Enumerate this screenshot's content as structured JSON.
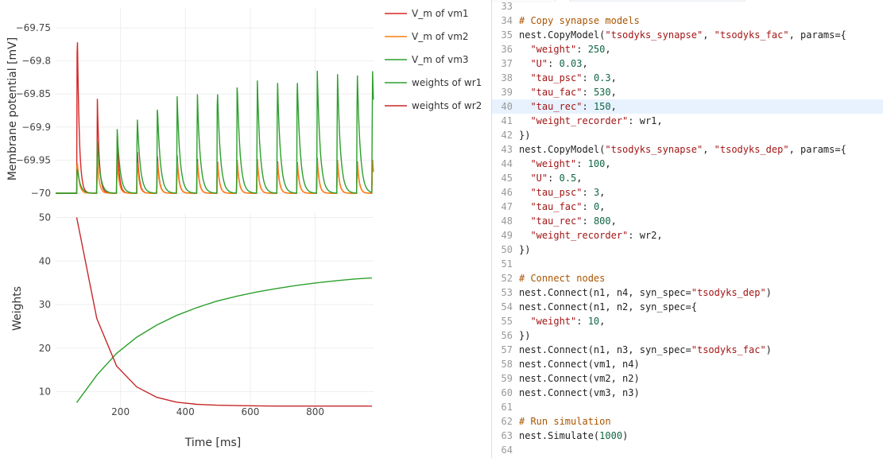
{
  "plot": {
    "legend": [
      {
        "label": "V_m of vm1",
        "color": "#d62728"
      },
      {
        "label": "V_m of vm2",
        "color": "#ff7f0e"
      },
      {
        "label": "V_m of vm3",
        "color": "#2ca02c"
      },
      {
        "label": "weights of wr1",
        "color": "#2ca02c"
      },
      {
        "label": "weights of wr2",
        "color": "#c62828"
      }
    ],
    "top_ylabel": "Membrane potential [mV]",
    "bottom_ylabel": "Weights",
    "xlabel": "Time [ms]"
  },
  "chart_data": [
    {
      "type": "line",
      "title": "",
      "ylabel": "Membrane potential [mV]",
      "xlabel": "",
      "xlim": [
        0,
        980
      ],
      "ylim": [
        -70.0,
        -69.72
      ],
      "yticks": [
        "−69.75",
        "−69.8",
        "−69.85",
        "−69.9",
        "−69.95",
        "−70"
      ],
      "spike_times": [
        65,
        127,
        188,
        250,
        312,
        373,
        435,
        497,
        558,
        620,
        682,
        743,
        805,
        867,
        928,
        975
      ],
      "series": [
        {
          "name": "V_m of vm1",
          "color": "#d62728",
          "peaks": [
            -69.735,
            -69.855,
            -69.91,
            -69.93,
            -69.94,
            -69.942,
            -69.944,
            -69.945,
            -69.946,
            -69.946,
            -69.946,
            -69.946,
            -69.946,
            -69.946,
            -69.946,
            -69.946
          ]
        },
        {
          "name": "V_m of vm2",
          "color": "#ff7f0e",
          "peaks": [
            -69.948,
            -69.948,
            -69.948,
            -69.948,
            -69.948,
            -69.948,
            -69.948,
            -69.948,
            -69.948,
            -69.948,
            -69.948,
            -69.948,
            -69.948,
            -69.948,
            -69.948,
            -69.948
          ]
        },
        {
          "name": "V_m of vm3",
          "color": "#2ca02c",
          "peaks": [
            -69.96,
            -69.92,
            -69.9,
            -69.88,
            -69.865,
            -69.852,
            -69.842,
            -69.835,
            -69.829,
            -69.824,
            -69.82,
            -69.816,
            -69.813,
            -69.81,
            -69.808,
            -69.806
          ]
        }
      ]
    },
    {
      "type": "line",
      "title": "",
      "ylabel": "Weights",
      "xlabel": "Time [ms]",
      "xlim": [
        0,
        980
      ],
      "ylim": [
        5,
        51
      ],
      "yticks": [
        10,
        20,
        30,
        40,
        50
      ],
      "xticks": [
        200,
        400,
        600,
        800
      ],
      "series": [
        {
          "name": "weights of wr1",
          "color": "#2ca02c",
          "x": [
            65,
            127,
            188,
            250,
            312,
            373,
            435,
            497,
            558,
            620,
            682,
            743,
            805,
            867,
            928,
            975
          ],
          "y": [
            7.5,
            13.8,
            18.8,
            22.5,
            25.3,
            27.5,
            29.3,
            30.8,
            31.9,
            32.9,
            33.7,
            34.4,
            35.0,
            35.5,
            35.9,
            36.1
          ]
        },
        {
          "name": "weights of wr2",
          "color": "#c62828",
          "x": [
            65,
            127,
            188,
            250,
            312,
            373,
            435,
            497,
            558,
            620,
            682,
            743,
            805,
            867,
            928,
            975
          ],
          "y": [
            50,
            26.8,
            15.9,
            11.1,
            8.7,
            7.6,
            7.1,
            6.9,
            6.8,
            6.75,
            6.7,
            6.7,
            6.7,
            6.7,
            6.7,
            6.7
          ]
        }
      ]
    }
  ],
  "editor": {
    "highlight_line": 40,
    "lines": [
      {
        "n": "33",
        "t": []
      },
      {
        "n": "34",
        "t": [
          [
            "com",
            "# Copy synapse models"
          ]
        ]
      },
      {
        "n": "35",
        "t": [
          [
            "plain",
            "nest.CopyModel("
          ],
          [
            "str",
            "\"tsodyks_synapse\""
          ],
          [
            "plain",
            ", "
          ],
          [
            "str",
            "\"tsodyks_fac\""
          ],
          [
            "plain",
            ", params={"
          ]
        ]
      },
      {
        "n": "36",
        "t": [
          [
            "plain",
            "  "
          ],
          [
            "str",
            "\"weight\""
          ],
          [
            "plain",
            ": "
          ],
          [
            "num",
            "250"
          ],
          [
            "plain",
            ","
          ]
        ]
      },
      {
        "n": "37",
        "t": [
          [
            "plain",
            "  "
          ],
          [
            "str",
            "\"U\""
          ],
          [
            "plain",
            ": "
          ],
          [
            "num",
            "0.03"
          ],
          [
            "plain",
            ","
          ]
        ]
      },
      {
        "n": "38",
        "t": [
          [
            "plain",
            "  "
          ],
          [
            "str",
            "\"tau_psc\""
          ],
          [
            "plain",
            ": "
          ],
          [
            "num",
            "0.3"
          ],
          [
            "plain",
            ","
          ]
        ]
      },
      {
        "n": "39",
        "t": [
          [
            "plain",
            "  "
          ],
          [
            "str",
            "\"tau_fac\""
          ],
          [
            "plain",
            ": "
          ],
          [
            "num",
            "530"
          ],
          [
            "plain",
            ","
          ]
        ]
      },
      {
        "n": "40",
        "t": [
          [
            "plain",
            "  "
          ],
          [
            "str",
            "\"tau_rec\""
          ],
          [
            "plain",
            ": "
          ],
          [
            "num",
            "150"
          ],
          [
            "plain",
            ","
          ]
        ]
      },
      {
        "n": "41",
        "t": [
          [
            "plain",
            "  "
          ],
          [
            "str",
            "\"weight_recorder\""
          ],
          [
            "plain",
            ": wr1,"
          ]
        ]
      },
      {
        "n": "42",
        "t": [
          [
            "plain",
            "})"
          ]
        ]
      },
      {
        "n": "43",
        "t": [
          [
            "plain",
            "nest.CopyModel("
          ],
          [
            "str",
            "\"tsodyks_synapse\""
          ],
          [
            "plain",
            ", "
          ],
          [
            "str",
            "\"tsodyks_dep\""
          ],
          [
            "plain",
            ", params={"
          ]
        ]
      },
      {
        "n": "44",
        "t": [
          [
            "plain",
            "  "
          ],
          [
            "str",
            "\"weight\""
          ],
          [
            "plain",
            ": "
          ],
          [
            "num",
            "100"
          ],
          [
            "plain",
            ","
          ]
        ]
      },
      {
        "n": "45",
        "t": [
          [
            "plain",
            "  "
          ],
          [
            "str",
            "\"U\""
          ],
          [
            "plain",
            ": "
          ],
          [
            "num",
            "0.5"
          ],
          [
            "plain",
            ","
          ]
        ]
      },
      {
        "n": "46",
        "t": [
          [
            "plain",
            "  "
          ],
          [
            "str",
            "\"tau_psc\""
          ],
          [
            "plain",
            ": "
          ],
          [
            "num",
            "3"
          ],
          [
            "plain",
            ","
          ]
        ]
      },
      {
        "n": "47",
        "t": [
          [
            "plain",
            "  "
          ],
          [
            "str",
            "\"tau_fac\""
          ],
          [
            "plain",
            ": "
          ],
          [
            "num",
            "0"
          ],
          [
            "plain",
            ","
          ]
        ]
      },
      {
        "n": "48",
        "t": [
          [
            "plain",
            "  "
          ],
          [
            "str",
            "\"tau_rec\""
          ],
          [
            "plain",
            ": "
          ],
          [
            "num",
            "800"
          ],
          [
            "plain",
            ","
          ]
        ]
      },
      {
        "n": "49",
        "t": [
          [
            "plain",
            "  "
          ],
          [
            "str",
            "\"weight_recorder\""
          ],
          [
            "plain",
            ": wr2,"
          ]
        ]
      },
      {
        "n": "50",
        "t": [
          [
            "plain",
            "})"
          ]
        ]
      },
      {
        "n": "51",
        "t": []
      },
      {
        "n": "52",
        "t": [
          [
            "com",
            "# Connect nodes"
          ]
        ]
      },
      {
        "n": "53",
        "t": [
          [
            "plain",
            "nest.Connect(n1, n4, syn_spec="
          ],
          [
            "str",
            "\"tsodyks_dep\""
          ],
          [
            "plain",
            ")"
          ]
        ]
      },
      {
        "n": "54",
        "t": [
          [
            "plain",
            "nest.Connect(n1, n2, syn_spec={"
          ]
        ]
      },
      {
        "n": "55",
        "t": [
          [
            "plain",
            "  "
          ],
          [
            "str",
            "\"weight\""
          ],
          [
            "plain",
            ": "
          ],
          [
            "num",
            "10"
          ],
          [
            "plain",
            ","
          ]
        ]
      },
      {
        "n": "56",
        "t": [
          [
            "plain",
            "})"
          ]
        ]
      },
      {
        "n": "57",
        "t": [
          [
            "plain",
            "nest.Connect(n1, n3, syn_spec="
          ],
          [
            "str",
            "\"tsodyks_fac\""
          ],
          [
            "plain",
            ")"
          ]
        ]
      },
      {
        "n": "58",
        "t": [
          [
            "plain",
            "nest.Connect(vm1, n4)"
          ]
        ]
      },
      {
        "n": "59",
        "t": [
          [
            "plain",
            "nest.Connect(vm2, n2)"
          ]
        ]
      },
      {
        "n": "60",
        "t": [
          [
            "plain",
            "nest.Connect(vm3, n3)"
          ]
        ]
      },
      {
        "n": "61",
        "t": []
      },
      {
        "n": "62",
        "t": [
          [
            "com",
            "# Run simulation"
          ]
        ]
      },
      {
        "n": "63",
        "t": [
          [
            "plain",
            "nest.Simulate("
          ],
          [
            "num",
            "1000"
          ],
          [
            "plain",
            ")"
          ]
        ]
      },
      {
        "n": "64",
        "t": []
      }
    ]
  }
}
